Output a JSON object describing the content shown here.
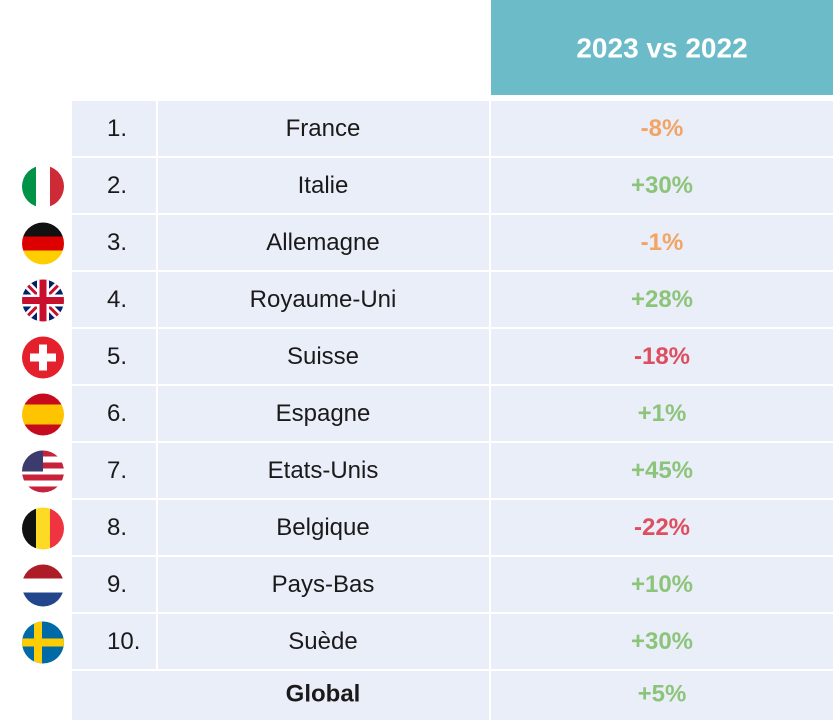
{
  "table": {
    "header": "2023 vs 2022",
    "rows": [
      {
        "rank": "1.",
        "country": "France",
        "change": "-8%",
        "color": "#f2a464"
      },
      {
        "rank": "2.",
        "country": "Italie",
        "change": "+30%",
        "color": "#8cc47a"
      },
      {
        "rank": "3.",
        "country": "Allemagne",
        "change": "-1%",
        "color": "#f2a464"
      },
      {
        "rank": "4.",
        "country": "Royaume-Uni",
        "change": "+28%",
        "color": "#8cc47a"
      },
      {
        "rank": "5.",
        "country": "Suisse",
        "change": "-18%",
        "color": "#dd4e5e"
      },
      {
        "rank": "6.",
        "country": "Espagne",
        "change": "+1%",
        "color": "#8cc47a"
      },
      {
        "rank": "7.",
        "country": "Etats-Unis",
        "change": "+45%",
        "color": "#8cc47a"
      },
      {
        "rank": "8.",
        "country": "Belgique",
        "change": "-22%",
        "color": "#dd4e5e"
      },
      {
        "rank": "9.",
        "country": "Pays-Bas",
        "change": "+10%",
        "color": "#8cc47a"
      },
      {
        "rank": "10.",
        "country": "Suède",
        "change": "+30%",
        "color": "#8cc47a"
      }
    ],
    "total": {
      "label": "Global",
      "change": "+5%",
      "color": "#8cc47a"
    }
  }
}
